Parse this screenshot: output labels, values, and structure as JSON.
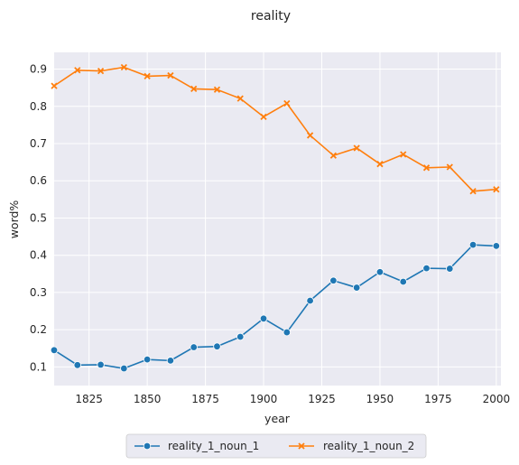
{
  "chart_data": {
    "type": "line",
    "title": "reality",
    "xlabel": "year",
    "ylabel": "word%",
    "xlim": [
      1810,
      2002
    ],
    "ylim": [
      0.05,
      0.945
    ],
    "xticks": [
      1825,
      1850,
      1875,
      1900,
      1925,
      1950,
      1975,
      2000
    ],
    "xtick_labels": [
      "1825",
      "1850",
      "1875",
      "1900",
      "1925",
      "1950",
      "1975",
      "2000"
    ],
    "yticks": [
      0.1,
      0.2,
      0.3,
      0.4,
      0.5,
      0.6,
      0.7,
      0.8,
      0.9
    ],
    "ytick_labels": [
      "0.1",
      "0.2",
      "0.3",
      "0.4",
      "0.5",
      "0.6",
      "0.7",
      "0.8",
      "0.9"
    ],
    "grid": true,
    "legend_position": "bottom-center",
    "x": [
      1810,
      1820,
      1830,
      1840,
      1850,
      1860,
      1870,
      1880,
      1890,
      1900,
      1910,
      1920,
      1930,
      1940,
      1950,
      1960,
      1970,
      1980,
      1990,
      2000
    ],
    "series": [
      {
        "name": "reality_1_noun_1",
        "color": "#1f77b4",
        "marker": "circle",
        "values": [
          0.145,
          0.105,
          0.106,
          0.096,
          0.12,
          0.117,
          0.153,
          0.155,
          0.181,
          0.23,
          0.193,
          0.278,
          0.332,
          0.313,
          0.355,
          0.329,
          0.365,
          0.364,
          0.428,
          0.425
        ]
      },
      {
        "name": "reality_1_noun_2",
        "color": "#ff7f0e",
        "marker": "x",
        "values": [
          0.855,
          0.897,
          0.895,
          0.905,
          0.881,
          0.883,
          0.847,
          0.845,
          0.821,
          0.772,
          0.808,
          0.722,
          0.668,
          0.688,
          0.645,
          0.671,
          0.635,
          0.637,
          0.572,
          0.577
        ]
      }
    ]
  }
}
